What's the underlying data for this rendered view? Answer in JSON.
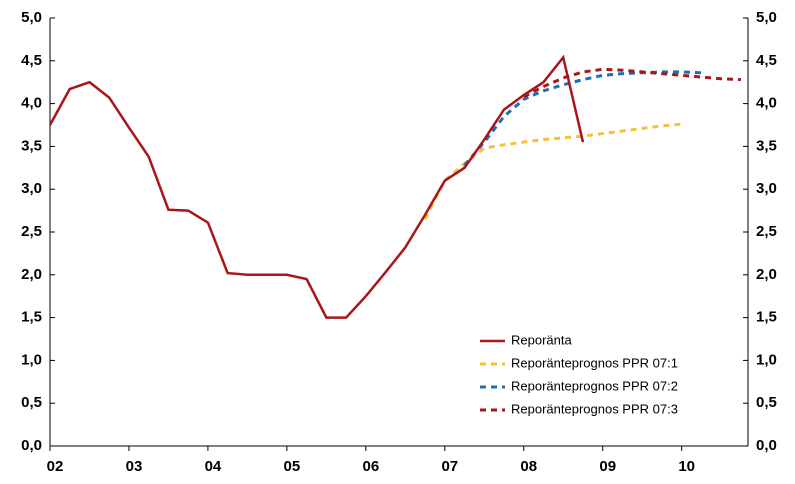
{
  "chart_data": {
    "type": "line",
    "x": [
      2002,
      2002.25,
      2002.5,
      2002.75,
      2003,
      2003.25,
      2003.5,
      2003.75,
      2004,
      2004.25,
      2004.5,
      2004.75,
      2005,
      2005.25,
      2005.5,
      2005.75,
      2006,
      2006.25,
      2006.5,
      2006.75,
      2007,
      2007.25,
      2007.5,
      2007.75,
      2008,
      2008.25,
      2008.5,
      2008.75,
      2009,
      2009.25,
      2009.5,
      2009.75,
      2010,
      2010.25,
      2010.5,
      2010.75
    ],
    "series": [
      {
        "name": "Reporänta",
        "color": "#a8161b",
        "dash": false,
        "values": [
          3.75,
          4.17,
          4.25,
          4.07,
          3.72,
          3.38,
          2.76,
          2.75,
          2.61,
          2.02,
          2.0,
          2.0,
          2.0,
          1.95,
          1.5,
          1.5,
          1.75,
          2.03,
          2.32,
          2.7,
          3.1,
          3.25,
          3.58,
          3.93,
          4.1,
          4.25,
          4.54,
          3.55,
          null,
          null,
          null,
          null,
          null,
          null,
          null,
          null
        ]
      },
      {
        "name": "Reporänteprognos PPR 07:1",
        "color": "#f5c03a",
        "dash": true,
        "values": [
          null,
          null,
          null,
          null,
          null,
          null,
          null,
          null,
          null,
          null,
          null,
          null,
          null,
          null,
          null,
          null,
          null,
          null,
          null,
          2.65,
          3.1,
          3.3,
          3.48,
          3.52,
          3.55,
          3.58,
          3.6,
          3.62,
          3.65,
          3.68,
          3.71,
          3.74,
          3.76,
          null,
          null,
          null
        ]
      },
      {
        "name": "Reporänteprognos PPR 07:2",
        "color": "#1a70b8",
        "dash": true,
        "values": [
          null,
          null,
          null,
          null,
          null,
          null,
          null,
          null,
          null,
          null,
          null,
          null,
          null,
          null,
          null,
          null,
          null,
          null,
          null,
          null,
          null,
          3.28,
          3.55,
          3.85,
          4.05,
          4.15,
          4.22,
          4.28,
          4.33,
          4.35,
          4.36,
          4.37,
          4.37,
          4.36,
          null,
          null
        ]
      },
      {
        "name": "Reporänteprognos PPR 07:3",
        "color": "#a8161b",
        "dash": true,
        "values": [
          null,
          null,
          null,
          null,
          null,
          null,
          null,
          null,
          null,
          null,
          null,
          null,
          null,
          null,
          null,
          null,
          null,
          null,
          null,
          null,
          null,
          null,
          null,
          null,
          4.08,
          4.2,
          4.3,
          4.37,
          4.4,
          4.39,
          4.37,
          4.35,
          4.33,
          4.31,
          4.29,
          4.28
        ]
      }
    ],
    "xlim": [
      2002,
      2010.84
    ],
    "xticks": [
      {
        "value": 2002,
        "label": "02"
      },
      {
        "value": 2003,
        "label": "03"
      },
      {
        "value": 2004,
        "label": "04"
      },
      {
        "value": 2005,
        "label": "05"
      },
      {
        "value": 2006,
        "label": "06"
      },
      {
        "value": 2007,
        "label": "07"
      },
      {
        "value": 2008,
        "label": "08"
      },
      {
        "value": 2009,
        "label": "09"
      },
      {
        "value": 2010,
        "label": "10"
      }
    ],
    "ylim": [
      0,
      5
    ],
    "yticks": [
      {
        "value": 0,
        "label": "0,0"
      },
      {
        "value": 0.5,
        "label": "0,5"
      },
      {
        "value": 1,
        "label": "1,0"
      },
      {
        "value": 1.5,
        "label": "1,5"
      },
      {
        "value": 2,
        "label": "2,0"
      },
      {
        "value": 2.5,
        "label": "2,5"
      },
      {
        "value": 3,
        "label": "3,0"
      },
      {
        "value": 3.5,
        "label": "3,5"
      },
      {
        "value": 4,
        "label": "4,0"
      },
      {
        "value": 4.5,
        "label": "4,5"
      },
      {
        "value": 5,
        "label": "5,0"
      }
    ],
    "grid": false,
    "legend": "lower right"
  }
}
